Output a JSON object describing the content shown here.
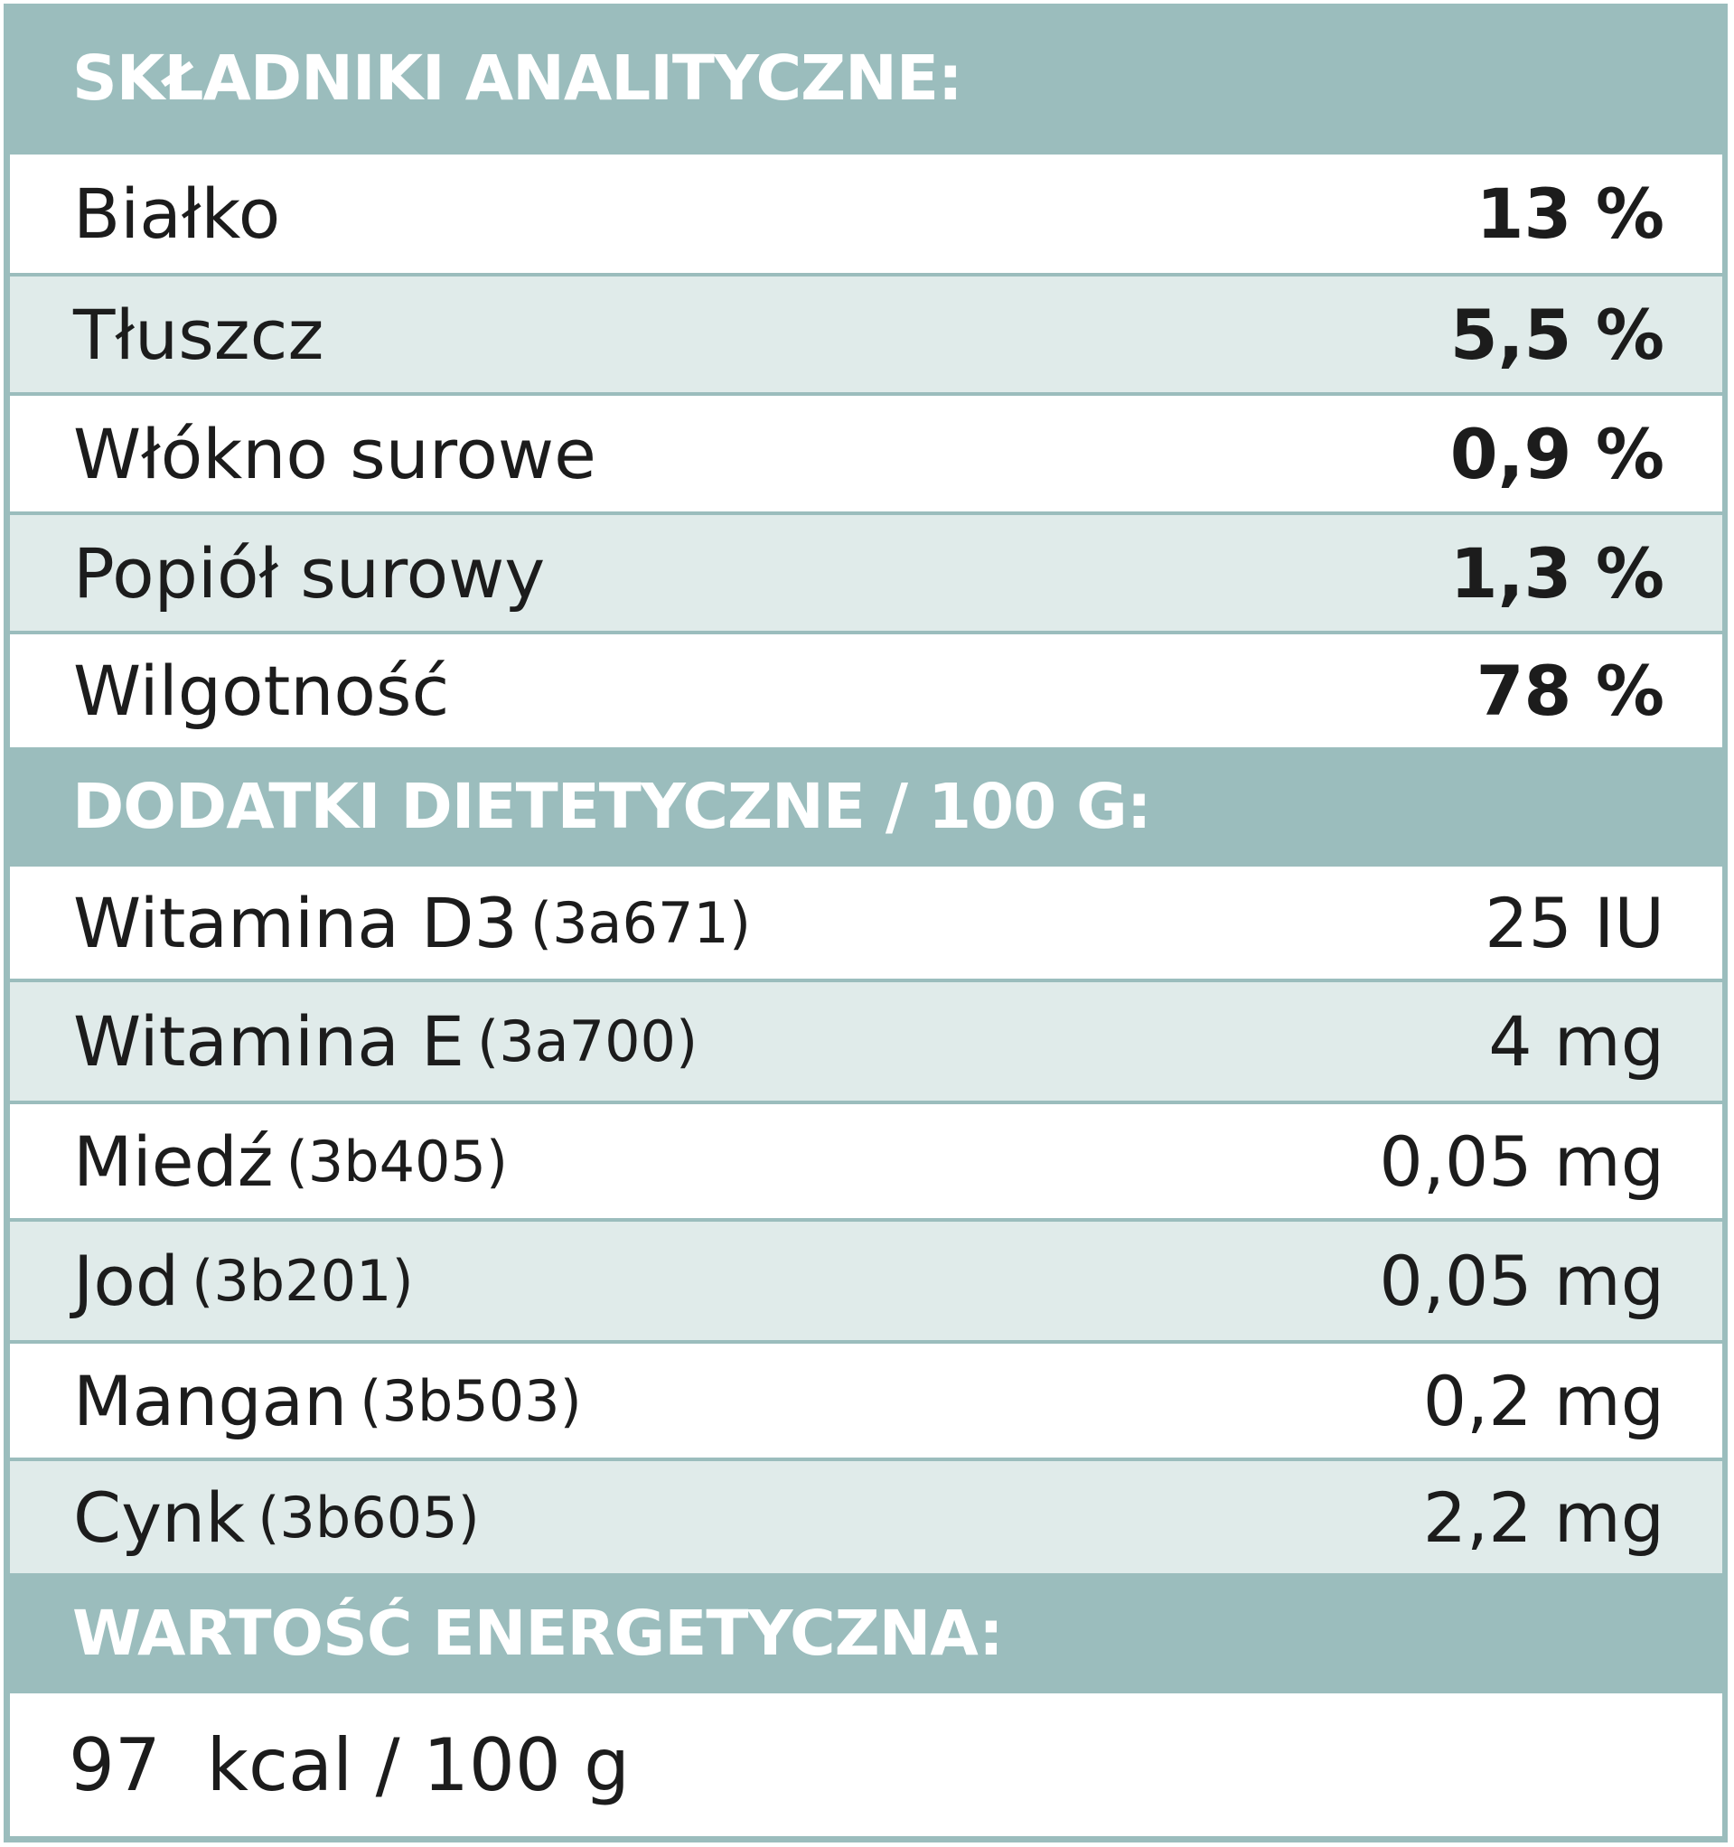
{
  "analytic": {
    "header": "SKŁADNIKI ANALITYCZNE:",
    "rows": [
      {
        "label": "Białko",
        "value": "13 %"
      },
      {
        "label": "Tłuszcz",
        "value": "5,5 %"
      },
      {
        "label": "Włókno surowe",
        "value": "0,9 %"
      },
      {
        "label": "Popiół surowy",
        "value": "1,3 %"
      },
      {
        "label": "Wilgotność",
        "value": "78 %"
      }
    ]
  },
  "additives": {
    "header": "DODATKI DIETETYCZNE / 100 G:",
    "rows": [
      {
        "label": "Witamina D3",
        "code": "(3a671)",
        "value": "25 IU"
      },
      {
        "label": "Witamina E",
        "code": "(3a700)",
        "value": "4 mg"
      },
      {
        "label": "Miedź",
        "code": "(3b405)",
        "value": "0,05 mg"
      },
      {
        "label": "Jod",
        "code": "(3b201)",
        "value": "0,05 mg"
      },
      {
        "label": "Mangan",
        "code": "(3b503)",
        "value": "0,2 mg"
      },
      {
        "label": "Cynk",
        "code": "(3b605)",
        "value": "2,2 mg"
      }
    ]
  },
  "energy": {
    "header": "WARTOŚĆ ENERGETYCZNA:",
    "value": "97  kcal / 100 g"
  },
  "colors": {
    "header_bg": "#9bbdbd",
    "row_tint": "#e0ebea",
    "row_white": "#ffffff",
    "text": "#1c1c1c"
  }
}
